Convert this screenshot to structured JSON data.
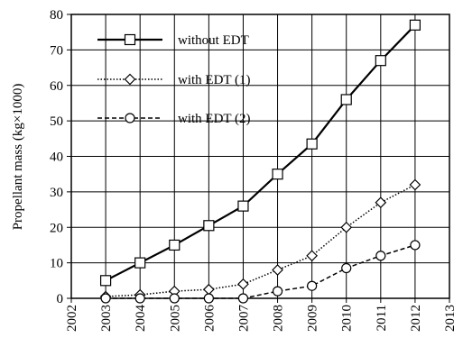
{
  "chart_data": {
    "type": "line",
    "title": "",
    "xlabel": "",
    "ylabel": "Propellant mass (kg×1000)",
    "xlim": [
      2002,
      2013
    ],
    "ylim": [
      0,
      80
    ],
    "x_ticks": [
      2002,
      2003,
      2004,
      2005,
      2006,
      2007,
      2008,
      2009,
      2010,
      2011,
      2012,
      2013
    ],
    "y_ticks": [
      0,
      10,
      20,
      30,
      40,
      50,
      60,
      70,
      80
    ],
    "grid": true,
    "legend_position": "top-left",
    "series": [
      {
        "name": "without EDT",
        "line_style": "solid",
        "marker": "square",
        "x": [
          2003,
          2004,
          2005,
          2006,
          2007,
          2008,
          2009,
          2010,
          2011,
          2012
        ],
        "values": [
          5,
          10,
          15,
          20.5,
          26,
          35,
          43.5,
          56,
          67,
          77
        ]
      },
      {
        "name": "with EDT (1)",
        "line_style": "dotted",
        "marker": "diamond",
        "x": [
          2003,
          2004,
          2005,
          2006,
          2007,
          2008,
          2009,
          2010,
          2011,
          2012
        ],
        "values": [
          0.5,
          1,
          2,
          2.5,
          4,
          8,
          12,
          20,
          27,
          32
        ]
      },
      {
        "name": "with EDT (2)",
        "line_style": "dashed",
        "marker": "circle",
        "x": [
          2003,
          2004,
          2005,
          2006,
          2007,
          2008,
          2009,
          2010,
          2011,
          2012
        ],
        "values": [
          0,
          0,
          0,
          0,
          0,
          2,
          3.5,
          8.5,
          12,
          15
        ]
      }
    ]
  }
}
